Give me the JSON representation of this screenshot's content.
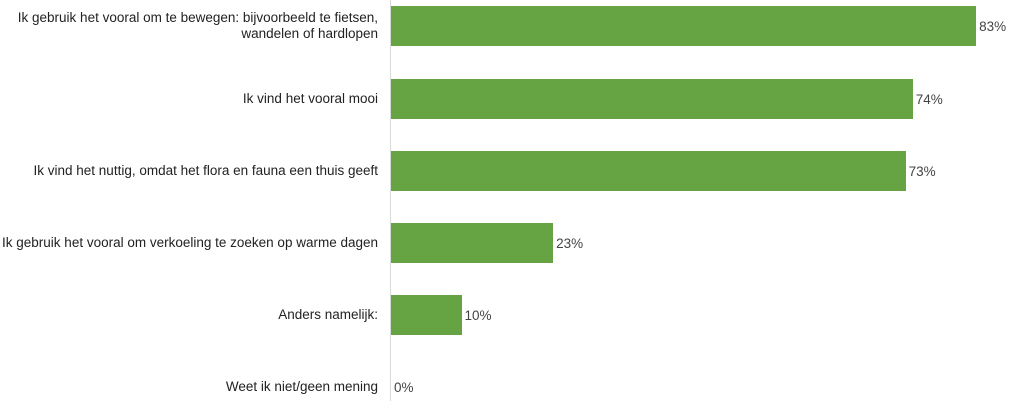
{
  "chart_data": {
    "type": "bar",
    "orientation": "horizontal",
    "categories": [
      "Ik gebruik het vooral om te bewegen: bijvoorbeeld te fietsen, wandelen of hardlopen",
      "Ik vind het vooral mooi",
      "Ik vind het nuttig, omdat het flora en fauna een thuis geeft",
      "Ik gebruik het vooral om verkoeling te zoeken op warme dagen",
      "Anders namelijk:",
      "Weet ik niet/geen mening"
    ],
    "values": [
      83,
      74,
      73,
      23,
      10,
      0
    ],
    "value_labels": [
      "83%",
      "74%",
      "73%",
      "23%",
      "10%",
      "0%"
    ],
    "unit": "%",
    "xlim": [
      0,
      100
    ],
    "grid": false,
    "legend": "none",
    "bar_color": "#66a443"
  }
}
